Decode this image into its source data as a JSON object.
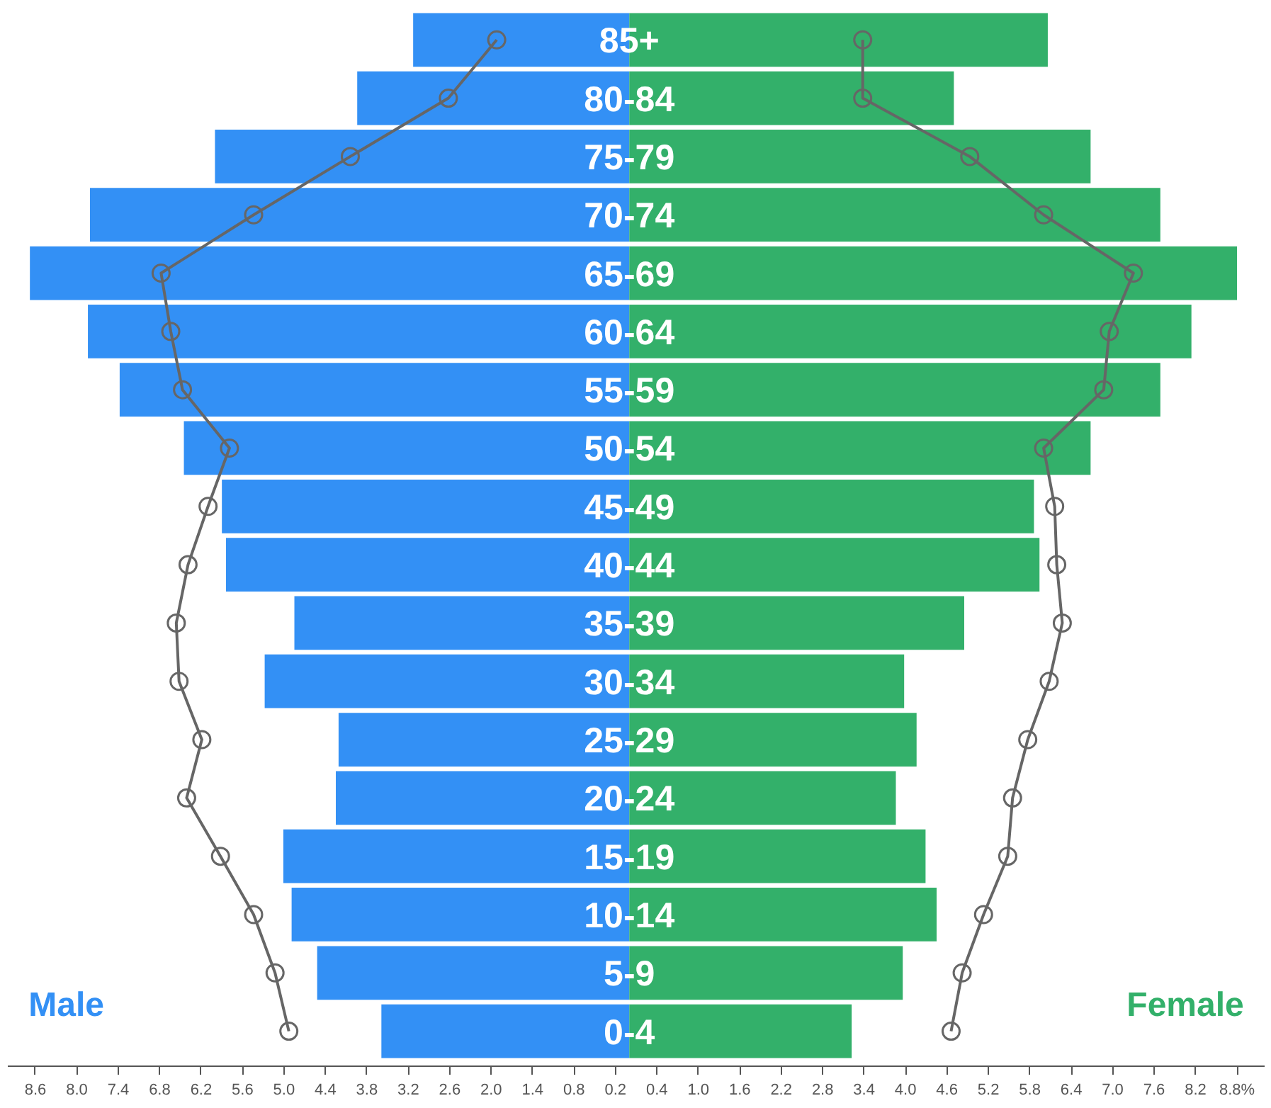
{
  "chart_data": {
    "type": "bar",
    "orientation": "horizontal",
    "categories": [
      "85+",
      "80-84",
      "75-79",
      "70-74",
      "65-69",
      "60-64",
      "55-59",
      "50-54",
      "45-49",
      "40-44",
      "35-39",
      "30-34",
      "25-29",
      "20-24",
      "15-19",
      "10-14",
      "5-9",
      "0-4"
    ],
    "series": [
      {
        "name": "Male",
        "color": "#3390f5",
        "values": [
          -3.13,
          -3.94,
          -6.0,
          -7.81,
          -8.68,
          -7.84,
          -7.38,
          -6.45,
          -5.9,
          -5.84,
          -4.85,
          -5.28,
          -4.21,
          -4.25,
          -5.01,
          -4.89,
          -4.52,
          -3.59
        ]
      },
      {
        "name": "Female",
        "color": "#33b06a",
        "values": [
          6.06,
          4.7,
          6.68,
          7.69,
          8.8,
          8.14,
          7.69,
          6.68,
          5.86,
          5.94,
          4.85,
          3.98,
          4.16,
          3.86,
          4.29,
          4.45,
          3.96,
          3.22
        ]
      },
      {
        "type": "line",
        "color": "#666666",
        "marker": "circle",
        "values": [
          -1.92,
          -2.62,
          -4.04,
          -5.44,
          -6.78,
          -6.64,
          -6.47,
          -5.79,
          -6.1,
          -6.39,
          -6.56,
          -6.52,
          -6.19,
          -6.41,
          -5.92,
          -5.44,
          -5.13,
          -4.93
        ]
      },
      {
        "type": "line",
        "color": "#666666",
        "marker": "circle",
        "values": [
          3.38,
          3.38,
          4.93,
          6.0,
          7.3,
          6.95,
          6.87,
          6.0,
          6.16,
          6.19,
          6.27,
          6.08,
          5.77,
          5.55,
          5.48,
          5.13,
          4.82,
          4.66
        ]
      }
    ],
    "xlim": [
      -9.0,
      9.2
    ],
    "xticks": [
      {
        "value": -8.6,
        "label": "8.6"
      },
      {
        "value": -8.0,
        "label": "8.0"
      },
      {
        "value": -7.4,
        "label": "7.4"
      },
      {
        "value": -6.8,
        "label": "6.8"
      },
      {
        "value": -6.2,
        "label": "6.2"
      },
      {
        "value": -5.6,
        "label": "5.6"
      },
      {
        "value": -5.0,
        "label": "5.0"
      },
      {
        "value": -4.4,
        "label": "4.4"
      },
      {
        "value": -3.8,
        "label": "3.8"
      },
      {
        "value": -3.2,
        "label": "3.2"
      },
      {
        "value": -2.6,
        "label": "2.6"
      },
      {
        "value": -2.0,
        "label": "2.0"
      },
      {
        "value": -1.4,
        "label": "1.4"
      },
      {
        "value": -0.8,
        "label": "0.8"
      },
      {
        "value": -0.2,
        "label": "0.2"
      },
      0.4,
      {
        "value": 1.0,
        "label": "1.0"
      },
      1.6,
      2.2,
      2.8,
      3.4,
      {
        "value": 4.0,
        "label": "4.0"
      },
      4.6,
      5.2,
      5.8,
      6.4,
      {
        "value": 7.0,
        "label": "7.0"
      },
      7.6,
      8.2,
      {
        "value": 8.8,
        "label": "8.8%"
      }
    ],
    "stacked": true,
    "grid": false
  }
}
